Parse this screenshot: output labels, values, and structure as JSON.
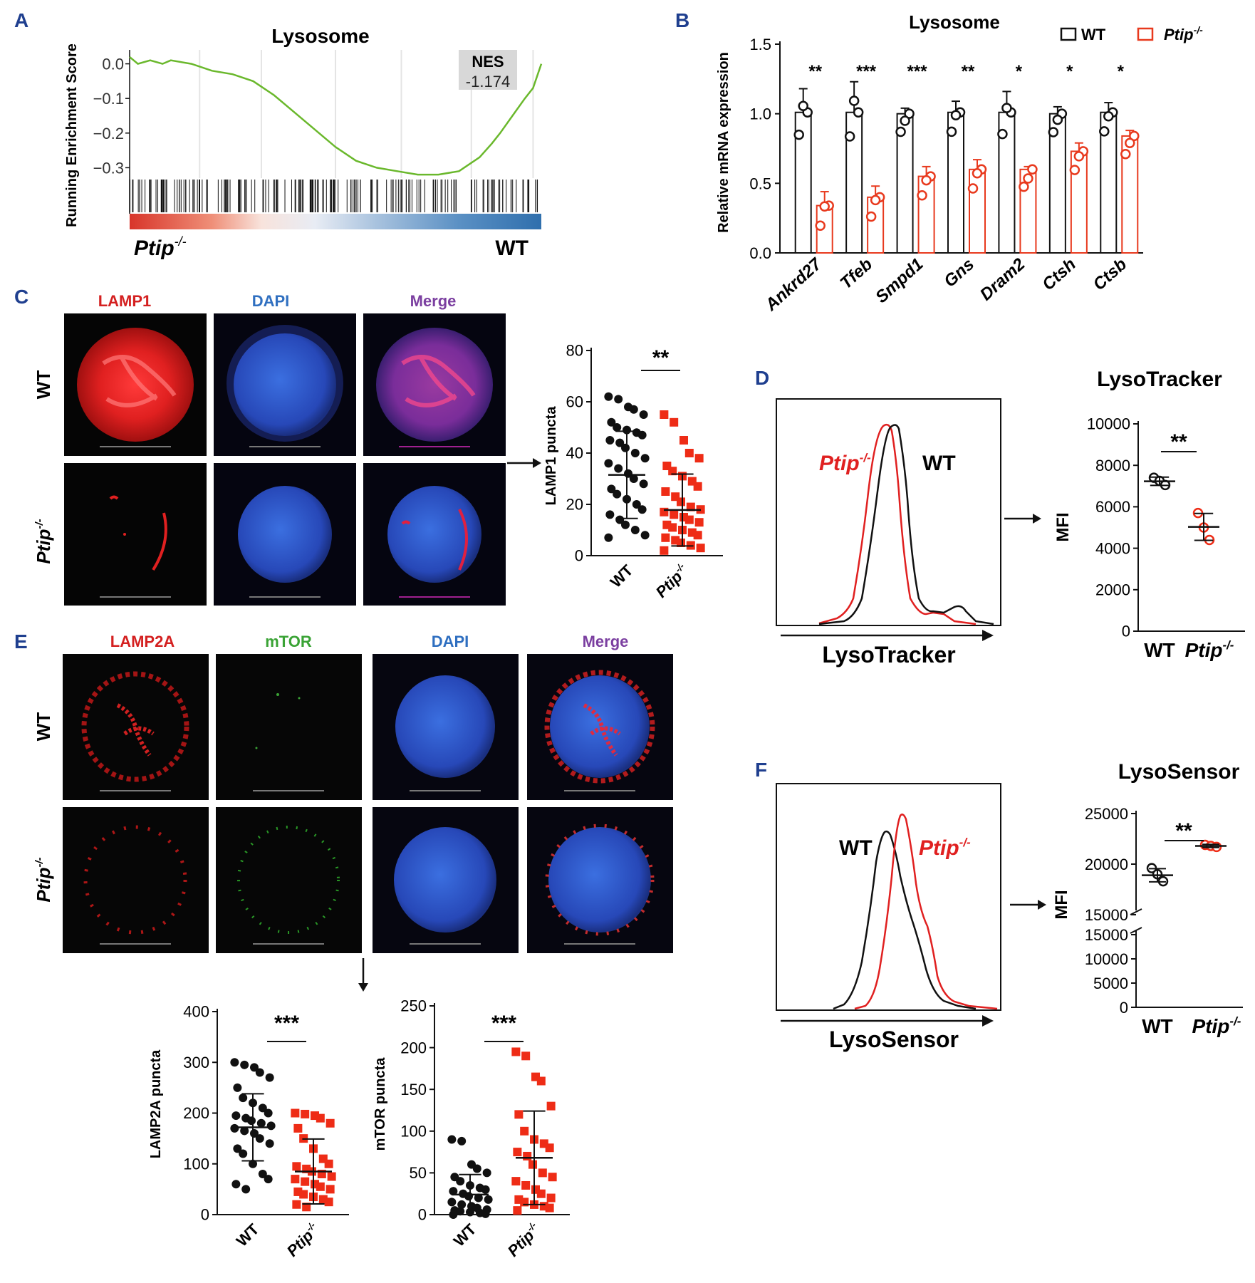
{
  "colors": {
    "wt": "#111111",
    "ko": "#e8391d",
    "ko_point": "#ee2c16",
    "gsea_line": "#6ab82c",
    "panel_letter": "#1f3f8f",
    "lamp_red": "#d42020",
    "dapi_blue": "#2f6fc0",
    "merge_purple": "#7b3fa0",
    "mtor_green": "#3aa335"
  },
  "panel_letters": {
    "a": "A",
    "b": "B",
    "c": "C",
    "d": "D",
    "e": "E",
    "f": "F"
  },
  "genotypes": {
    "wt": "WT",
    "ko": "Ptip",
    "ko_sup": "-/-"
  },
  "chart_data": [
    {
      "id": "A",
      "type": "line",
      "title": "Lysosome",
      "ylabel": "Running Enrichment Score",
      "yticks": [
        "0.0",
        "−0.1",
        "−0.2",
        "−0.3"
      ],
      "ylim": [
        -0.33,
        0.03
      ],
      "score_x": [
        0,
        0.02,
        0.05,
        0.08,
        0.1,
        0.15,
        0.2,
        0.25,
        0.3,
        0.35,
        0.4,
        0.45,
        0.5,
        0.55,
        0.6,
        0.65,
        0.7,
        0.75,
        0.8,
        0.85,
        0.88,
        0.9,
        0.93,
        0.96,
        0.98,
        1.0
      ],
      "score_y": [
        0.02,
        0.0,
        0.01,
        0.0,
        0.01,
        0.0,
        -0.02,
        -0.03,
        -0.05,
        -0.09,
        -0.14,
        -0.19,
        -0.24,
        -0.28,
        -0.3,
        -0.31,
        -0.32,
        -0.32,
        -0.31,
        -0.27,
        -0.23,
        -0.2,
        -0.15,
        -0.1,
        -0.07,
        0.0
      ],
      "nes_label": "NES",
      "nes_value": "-1.174",
      "left_label": "Ptip",
      "right_label": "WT"
    },
    {
      "id": "B",
      "type": "bar",
      "title": "Lysosome",
      "ylabel": "Relative mRNA expression",
      "ylim": [
        0,
        1.5
      ],
      "yticks": [
        0,
        0.5,
        1.0,
        1.5
      ],
      "ytick_labels": [
        "0.0",
        "0.5",
        "1.0",
        "1.5"
      ],
      "categories": [
        "Ankrd27",
        "Tfeb",
        "Smpd1",
        "Gns",
        "Dram2",
        "Ctsh",
        "Ctsb"
      ],
      "series": [
        {
          "name": "WT",
          "values": [
            1.01,
            1.01,
            1.0,
            1.01,
            1.01,
            1.0,
            1.01
          ],
          "sd": [
            0.17,
            0.22,
            0.04,
            0.08,
            0.15,
            0.05,
            0.07
          ]
        },
        {
          "name": "Ptip",
          "values": [
            0.34,
            0.4,
            0.55,
            0.6,
            0.6,
            0.73,
            0.84
          ],
          "sd": [
            0.1,
            0.08,
            0.07,
            0.07,
            0.02,
            0.06,
            0.04
          ]
        }
      ],
      "significance": [
        "**",
        "***",
        "***",
        "**",
        "*",
        "*",
        "*"
      ],
      "legend": [
        "WT",
        "Ptip"
      ]
    },
    {
      "id": "C",
      "type": "scatter",
      "ylabel": "LAMP1 puncta",
      "ylim": [
        0,
        80
      ],
      "yticks": [
        0,
        20,
        40,
        60,
        80
      ],
      "categories": [
        "WT",
        "Ptip"
      ],
      "wt_points": [
        62,
        61,
        58,
        57,
        55,
        52,
        50,
        49,
        48,
        47,
        45,
        44,
        42,
        40,
        38,
        36,
        34,
        32,
        30,
        28,
        26,
        24,
        22,
        20,
        18,
        16,
        14,
        12,
        10,
        8,
        7
      ],
      "ko_points": [
        55,
        52,
        45,
        40,
        38,
        35,
        33,
        31,
        29,
        27,
        25,
        23,
        21,
        19,
        18,
        17,
        16,
        15,
        14,
        13,
        12,
        11,
        10,
        9,
        8,
        7,
        6,
        5,
        4,
        3,
        2
      ],
      "mean": [
        31.5,
        17.8
      ],
      "sd": [
        17,
        14
      ],
      "significance": "**"
    },
    {
      "id": "D",
      "type": "scatter",
      "title": "LysoTracker",
      "ylabel": "MFI",
      "ylim": [
        0,
        10000
      ],
      "yticks": [
        0,
        2000,
        4000,
        6000,
        8000,
        10000
      ],
      "categories": [
        "WT",
        "Ptip"
      ],
      "wt_points": [
        7400,
        7250,
        7050
      ],
      "ko_points": [
        5700,
        5000,
        4400
      ],
      "mean": [
        7230,
        5030
      ],
      "sd": [
        200,
        650
      ],
      "significance": "**",
      "histogram": {
        "xlabel": "LysoTracker",
        "labels": [
          "Ptip",
          "WT"
        ]
      }
    },
    {
      "id": "E1",
      "type": "scatter",
      "ylabel": "LAMP2A puncta",
      "ylim": [
        0,
        400
      ],
      "yticks": [
        0,
        100,
        200,
        300,
        400
      ],
      "categories": [
        "WT",
        "Ptip"
      ],
      "wt_points": [
        300,
        295,
        290,
        280,
        270,
        250,
        230,
        220,
        210,
        200,
        195,
        190,
        185,
        180,
        175,
        170,
        165,
        160,
        150,
        140,
        130,
        120,
        100,
        80,
        70,
        60,
        50
      ],
      "ko_points": [
        200,
        198,
        195,
        190,
        180,
        170,
        150,
        130,
        110,
        100,
        95,
        90,
        85,
        80,
        75,
        70,
        65,
        60,
        55,
        50,
        45,
        40,
        35,
        30,
        25,
        20,
        15
      ],
      "mean": [
        172,
        85
      ],
      "sd": [
        66,
        64
      ],
      "significance": "***"
    },
    {
      "id": "E2",
      "type": "scatter",
      "ylabel": "mTOR puncta",
      "ylim": [
        0,
        250
      ],
      "yticks": [
        0,
        50,
        100,
        150,
        200,
        250
      ],
      "categories": [
        "WT",
        "Ptip"
      ],
      "wt_points": [
        90,
        88,
        60,
        55,
        50,
        45,
        40,
        35,
        32,
        30,
        28,
        25,
        22,
        20,
        18,
        15,
        12,
        10,
        8,
        6,
        5,
        4,
        3,
        2,
        1,
        0
      ],
      "ko_points": [
        195,
        190,
        165,
        160,
        130,
        120,
        100,
        90,
        85,
        80,
        75,
        70,
        60,
        50,
        45,
        40,
        35,
        30,
        25,
        20,
        18,
        15,
        12,
        10,
        8,
        5
      ],
      "mean": [
        24,
        68
      ],
      "sd": [
        24,
        56
      ],
      "significance": "***"
    },
    {
      "id": "F",
      "type": "scatter",
      "title": "LysoSensor",
      "ylabel": "MFI",
      "ylim": [
        0,
        25000
      ],
      "yticks_lower": [
        "0",
        "5000",
        "10000",
        "15000"
      ],
      "yticks_upper": [
        "15000",
        "20000",
        "25000"
      ],
      "categories": [
        "WT",
        "Ptip"
      ],
      "wt_points": [
        19600,
        19000,
        18300
      ],
      "ko_points": [
        21900,
        21800,
        21700
      ],
      "mean": [
        18900,
        21800
      ],
      "sd": [
        650,
        150
      ],
      "significance": "**",
      "histogram": {
        "xlabel": "LysoSensor",
        "labels": [
          "WT",
          "Ptip"
        ]
      }
    }
  ],
  "microscopy": {
    "c_headers": [
      "LAMP1",
      "DAPI",
      "Merge"
    ],
    "e_headers": [
      "LAMP2A",
      "mTOR",
      "DAPI",
      "Merge"
    ]
  }
}
